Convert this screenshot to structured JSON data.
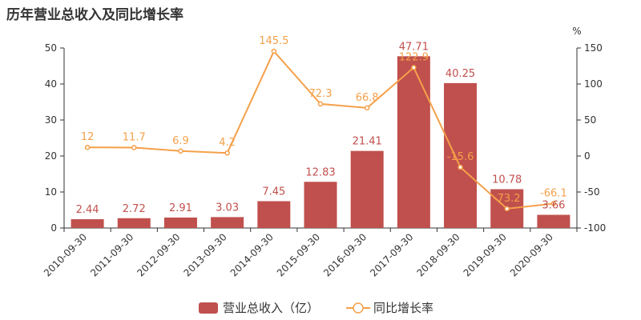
{
  "chart_data": {
    "type": "bar",
    "title": "历年营业总收入及同比增长率",
    "categories": [
      "2010-09-30",
      "2011-09-30",
      "2012-09-30",
      "2013-09-30",
      "2014-09-30",
      "2015-09-30",
      "2016-09-30",
      "2017-09-30",
      "2018-09-30",
      "2019-09-30",
      "2020-09-30"
    ],
    "series": [
      {
        "name": "营业总收入（亿）",
        "type": "bar",
        "axis": "left",
        "color": "#c0504d",
        "values": [
          2.44,
          2.72,
          2.91,
          3.03,
          7.45,
          12.83,
          21.41,
          47.71,
          40.25,
          10.78,
          3.66
        ],
        "labels": [
          "2.44",
          "2.72",
          "2.91",
          "3.03",
          "7.45",
          "12.83",
          "21.41",
          "47.71",
          "40.25",
          "10.78",
          "3.66"
        ]
      },
      {
        "name": "同比增长率",
        "type": "line",
        "axis": "right",
        "color": "#f5a04a",
        "values": [
          12,
          11.7,
          6.9,
          4.2,
          145.5,
          72.3,
          66.8,
          122.9,
          -15.6,
          -73.2,
          -66.1
        ],
        "labels": [
          "12",
          "11.7",
          "6.9",
          "4.2",
          "145.5",
          "72.3",
          "66.8",
          "122.9",
          "-15.6",
          "-73.2",
          "-66.1"
        ]
      }
    ],
    "y_left": {
      "ylim": [
        0,
        50
      ],
      "ticks": [
        0,
        10,
        20,
        30,
        40,
        50
      ]
    },
    "y_right": {
      "ylim": [
        -100,
        150
      ],
      "ticks": [
        -100,
        -50,
        0,
        50,
        100,
        150
      ],
      "unit": "%"
    },
    "legend_position": "bottom-center",
    "grid": false
  }
}
